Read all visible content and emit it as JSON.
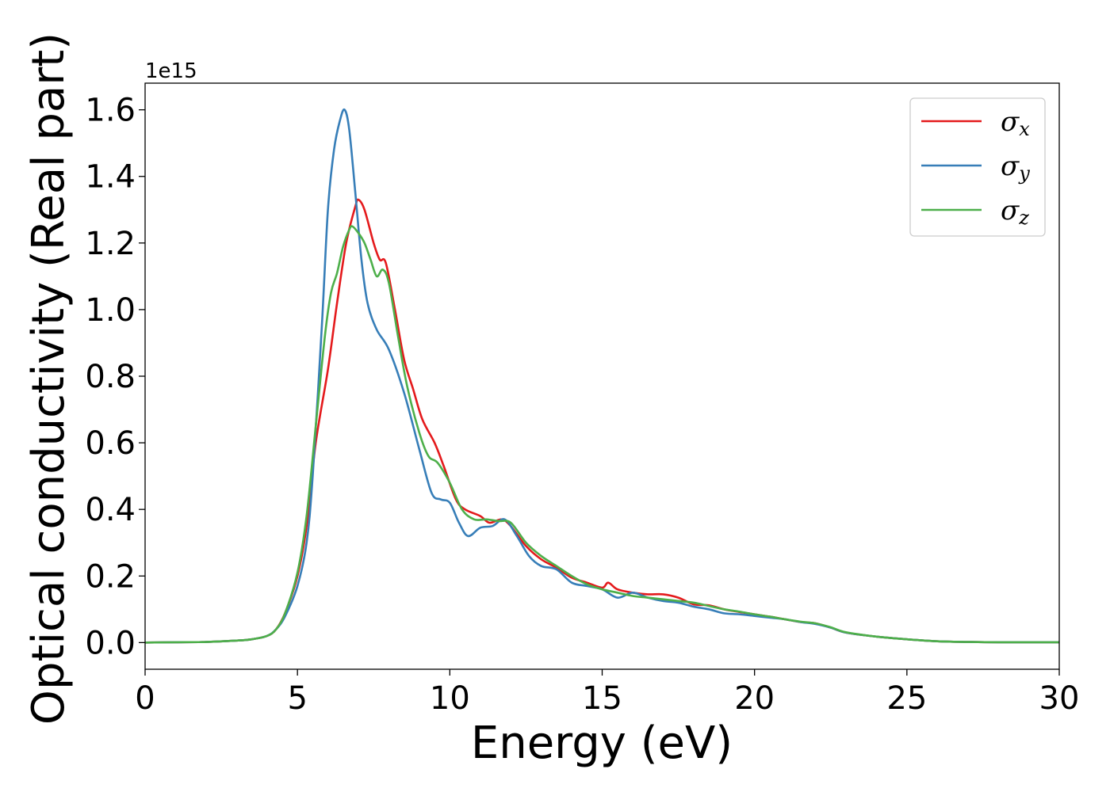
{
  "chart_data": {
    "type": "line",
    "xlabel": "Energy (eV)",
    "ylabel": "Optical conductivity (Real part)",
    "y_offset_label": "1e15",
    "xlim": [
      0,
      30
    ],
    "ylim": [
      -0.08,
      1.68
    ],
    "xticks": [
      "0",
      "5",
      "10",
      "15",
      "20",
      "25",
      "30"
    ],
    "xtick_values": [
      0,
      5,
      10,
      15,
      20,
      25,
      30
    ],
    "yticks": [
      "0.0",
      "0.2",
      "0.4",
      "0.6",
      "0.8",
      "1.0",
      "1.2",
      "1.4",
      "1.6"
    ],
    "ytick_values": [
      0.0,
      0.2,
      0.4,
      0.6,
      0.8,
      1.0,
      1.2,
      1.4,
      1.6
    ],
    "grid": false,
    "legend": "top-right",
    "series": [
      {
        "name": "σ",
        "subscript": "x",
        "color": "#e41a1c",
        "x": [
          0,
          1,
          2,
          3,
          3.5,
          4,
          4.3,
          4.6,
          5,
          5.3,
          5.6,
          6,
          6.3,
          6.6,
          6.9,
          7.0,
          7.2,
          7.5,
          7.7,
          7.9,
          8.2,
          8.5,
          8.8,
          9.1,
          9.5,
          9.8,
          10.2,
          10.5,
          11,
          11.3,
          11.7,
          12,
          12.5,
          13,
          13.5,
          14,
          14.5,
          15,
          15.2,
          15.5,
          16,
          16.5,
          17,
          17.5,
          18,
          18.5,
          19,
          19.5,
          20,
          20.5,
          21,
          21.5,
          22,
          22.5,
          23,
          24,
          25,
          26,
          27,
          28,
          30
        ],
        "y": [
          0,
          0.001,
          0.002,
          0.006,
          0.01,
          0.02,
          0.04,
          0.09,
          0.2,
          0.35,
          0.6,
          0.82,
          1.02,
          1.2,
          1.31,
          1.33,
          1.3,
          1.2,
          1.15,
          1.14,
          1.0,
          0.85,
          0.76,
          0.67,
          0.6,
          0.53,
          0.43,
          0.4,
          0.38,
          0.36,
          0.37,
          0.35,
          0.29,
          0.25,
          0.225,
          0.195,
          0.18,
          0.165,
          0.18,
          0.16,
          0.15,
          0.145,
          0.145,
          0.135,
          0.115,
          0.112,
          0.1,
          0.092,
          0.085,
          0.078,
          0.07,
          0.062,
          0.058,
          0.045,
          0.03,
          0.018,
          0.01,
          0.004,
          0.002,
          0.001,
          0.001
        ]
      },
      {
        "name": "σ",
        "subscript": "y",
        "color": "#377eb8",
        "x": [
          0,
          1,
          2,
          3,
          3.5,
          4,
          4.3,
          4.6,
          5,
          5.3,
          5.5,
          5.8,
          6.0,
          6.2,
          6.4,
          6.55,
          6.7,
          6.9,
          7.1,
          7.3,
          7.6,
          8.0,
          8.5,
          9.0,
          9.4,
          9.7,
          10.0,
          10.3,
          10.6,
          11.0,
          11.4,
          11.8,
          12.2,
          12.6,
          13,
          13.5,
          14,
          14.5,
          15,
          15.5,
          16,
          16.5,
          17,
          17.5,
          18,
          18.5,
          19,
          19.5,
          20,
          20.5,
          21,
          21.5,
          22,
          22.5,
          23,
          24,
          25,
          26,
          27,
          28,
          30
        ],
        "y": [
          0,
          0.001,
          0.002,
          0.006,
          0.01,
          0.02,
          0.04,
          0.08,
          0.17,
          0.3,
          0.5,
          0.95,
          1.3,
          1.48,
          1.57,
          1.6,
          1.54,
          1.35,
          1.15,
          1.02,
          0.94,
          0.88,
          0.75,
          0.58,
          0.45,
          0.43,
          0.42,
          0.36,
          0.32,
          0.345,
          0.35,
          0.37,
          0.32,
          0.26,
          0.23,
          0.22,
          0.18,
          0.17,
          0.16,
          0.135,
          0.15,
          0.135,
          0.125,
          0.12,
          0.108,
          0.1,
          0.088,
          0.085,
          0.08,
          0.075,
          0.07,
          0.062,
          0.056,
          0.045,
          0.03,
          0.018,
          0.01,
          0.004,
          0.002,
          0.001,
          0.001
        ]
      },
      {
        "name": "σ",
        "subscript": "z",
        "color": "#4daf4a",
        "x": [
          0,
          1,
          2,
          3,
          3.5,
          4,
          4.3,
          4.6,
          5,
          5.3,
          5.6,
          5.9,
          6.1,
          6.3,
          6.5,
          6.7,
          6.8,
          7.0,
          7.2,
          7.4,
          7.6,
          7.8,
          8.0,
          8.3,
          8.6,
          9.0,
          9.3,
          9.6,
          10.0,
          10.4,
          10.8,
          11.2,
          11.6,
          12.0,
          12.5,
          13,
          13.5,
          14,
          14.5,
          15,
          15.5,
          16,
          16.5,
          17,
          17.5,
          18,
          18.5,
          19,
          19.5,
          20,
          20.5,
          21,
          21.5,
          22,
          22.5,
          23,
          24,
          25,
          26,
          27,
          28,
          30
        ],
        "y": [
          0,
          0.001,
          0.002,
          0.006,
          0.01,
          0.02,
          0.04,
          0.09,
          0.21,
          0.38,
          0.65,
          0.92,
          1.05,
          1.11,
          1.19,
          1.24,
          1.25,
          1.23,
          1.2,
          1.15,
          1.1,
          1.12,
          1.08,
          0.92,
          0.77,
          0.63,
          0.56,
          0.54,
          0.48,
          0.4,
          0.37,
          0.37,
          0.365,
          0.36,
          0.3,
          0.26,
          0.23,
          0.2,
          0.175,
          0.16,
          0.15,
          0.14,
          0.135,
          0.13,
          0.125,
          0.12,
          0.11,
          0.1,
          0.093,
          0.085,
          0.078,
          0.07,
          0.063,
          0.058,
          0.046,
          0.031,
          0.018,
          0.01,
          0.004,
          0.002,
          0.001,
          0.001
        ]
      }
    ]
  }
}
